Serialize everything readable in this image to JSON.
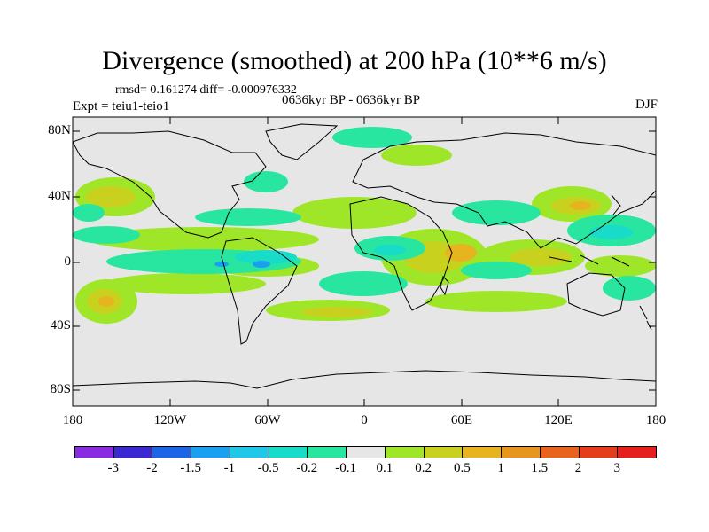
{
  "title": "Divergence (smoothed) at 200 hPa (10**6 m/s)",
  "stats": "rmsd= 0.161274 diff= -0.000976332",
  "experiment": "Expt = teiu1-teio1",
  "period": "0636kyr BP - 0636kyr BP",
  "season": "DJF",
  "lat_labels": [
    "80N",
    "40N",
    "0",
    "40S",
    "80S"
  ],
  "lon_labels": [
    "180",
    "120W",
    "60W",
    "0",
    "60E",
    "120E",
    "180"
  ],
  "colorbar": {
    "colors": [
      "#8a2be2",
      "#3c28d2",
      "#1e64e6",
      "#19a0f0",
      "#1ec8e6",
      "#19dcc8",
      "#28e6a0",
      "#e6e6e6",
      "#a0e628",
      "#c8d21e",
      "#e6b41e",
      "#e6961e",
      "#e6641e",
      "#e63c1e",
      "#e61e1e"
    ],
    "labels": [
      "-3",
      "-2",
      "-1.5",
      "-1",
      "-0.5",
      "-0.2",
      "-0.1",
      "0.1",
      "0.2",
      "0.5",
      "1",
      "1.5",
      "2",
      "3"
    ]
  },
  "colors": {
    "background": "#e6e6e6",
    "coast": "#000000"
  }
}
